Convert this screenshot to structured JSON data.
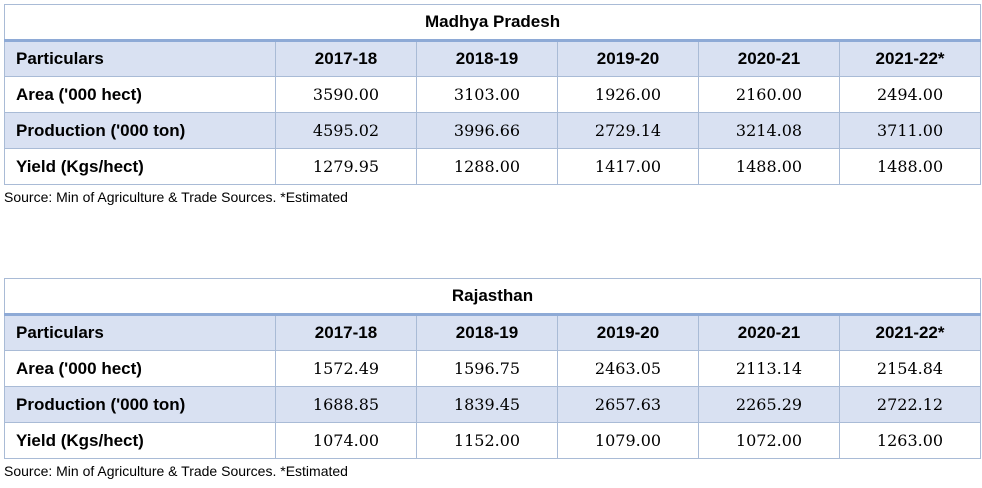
{
  "tables": [
    {
      "title": "Madhya Pradesh",
      "headers": [
        "Particulars",
        "2017-18",
        "2018-19",
        "2019-20",
        "2020-21",
        "2021-22*"
      ],
      "rows": [
        {
          "label": "Area ('000 hect)",
          "values": [
            "3590.00",
            "3103.00",
            "1926.00",
            "2160.00",
            "2494.00"
          ]
        },
        {
          "label": "Production ('000 ton)",
          "values": [
            "4595.02",
            "3996.66",
            "2729.14",
            "3214.08",
            "3711.00"
          ]
        },
        {
          "label": "Yield (Kgs/hect)",
          "values": [
            "1279.95",
            "1288.00",
            "1417.00",
            "1488.00",
            "1488.00"
          ]
        }
      ],
      "source": "Source: Min of Agriculture & Trade Sources. *Estimated"
    },
    {
      "title": "Rajasthan",
      "headers": [
        "Particulars",
        "2017-18",
        "2018-19",
        "2019-20",
        "2020-21",
        "2021-22*"
      ],
      "rows": [
        {
          "label": "Area ('000 hect)",
          "values": [
            "1572.49",
            "1596.75",
            "2463.05",
            "2113.14",
            "2154.84"
          ]
        },
        {
          "label": "Production ('000 ton)",
          "values": [
            "1688.85",
            "1839.45",
            "2657.63",
            "2265.29",
            "2722.12"
          ]
        },
        {
          "label": "Yield (Kgs/hect)",
          "values": [
            "1074.00",
            "1152.00",
            "1079.00",
            "1072.00",
            "1263.00"
          ]
        }
      ],
      "source": "Source: Min of Agriculture & Trade Sources. *Estimated"
    }
  ]
}
